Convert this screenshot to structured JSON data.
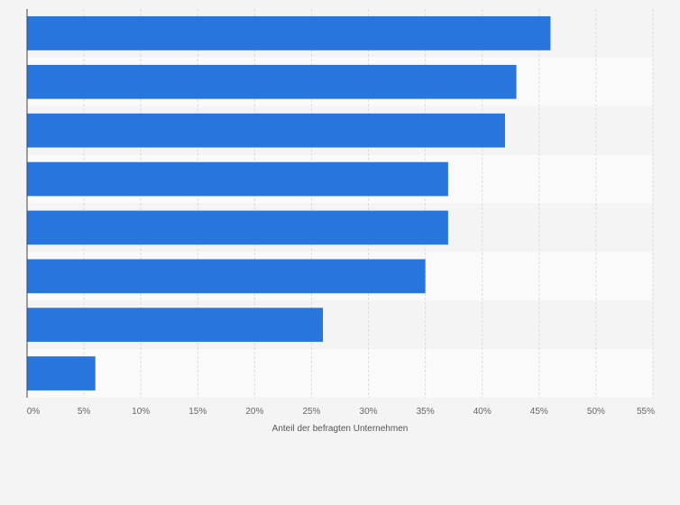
{
  "chart_data": {
    "type": "bar",
    "orientation": "horizontal",
    "categories": [
      "",
      "",
      "",
      "",
      "",
      "",
      "",
      ""
    ],
    "values": [
      46,
      43,
      42,
      37,
      37,
      35,
      26,
      6
    ],
    "unit": "%",
    "xlabel": "Anteil der befragten Unternehmen",
    "ylabel": "",
    "xlim": [
      0,
      55
    ],
    "xticks": [
      "0%",
      "5%",
      "10%",
      "15%",
      "20%",
      "25%",
      "30%",
      "35%",
      "40%",
      "45%",
      "50%",
      "55%"
    ],
    "bar_color": "#2876dd",
    "grid": true,
    "legend": "none"
  }
}
